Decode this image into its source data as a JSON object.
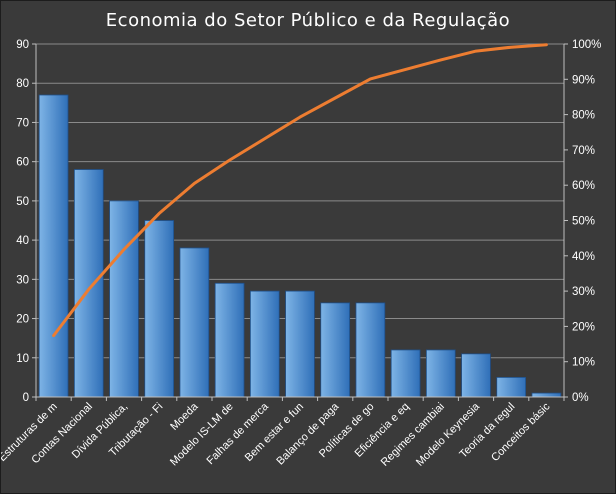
{
  "chart_data": {
    "type": "bar",
    "title": "Economia do Setor Público e da Regulação",
    "categories": [
      "Estruturas de m",
      "Contas Nacional",
      "Dívida Pública,",
      "Tributação - Fi",
      "Moeda",
      "Modelo IS-LM de",
      "Falhas de merca",
      "Bem estar e fun",
      "Balanço de paga",
      "Políticas de go",
      "Eficiência e eq",
      "Regimes cambiai",
      "Modelo Keynesia",
      "Teoria da regul",
      "Conceitos básic"
    ],
    "series": [
      {
        "type": "bar",
        "axis": "left",
        "values": [
          77,
          58,
          50,
          45,
          38,
          29,
          27,
          27,
          24,
          24,
          12,
          12,
          11,
          5,
          1
        ]
      },
      {
        "type": "line",
        "axis": "right",
        "values": [
          17.4,
          30.5,
          41.8,
          52.0,
          60.5,
          67.1,
          73.2,
          79.3,
          84.7,
          90.1,
          92.8,
          95.5,
          98.0,
          99.1,
          99.8
        ]
      }
    ],
    "y_left": {
      "min": 0,
      "max": 90,
      "step": 10,
      "ticks": [
        "0",
        "10",
        "20",
        "30",
        "40",
        "50",
        "60",
        "70",
        "80",
        "90"
      ]
    },
    "y_right": {
      "min": 0,
      "max": 100,
      "step": 10,
      "ticks": [
        "0%",
        "10%",
        "20%",
        "30%",
        "40%",
        "50%",
        "60%",
        "70%",
        "80%",
        "90%",
        "100%"
      ]
    },
    "grid": true,
    "legend": "none",
    "colors": {
      "background": "#3a3a3a",
      "grid": "#8a8a8a",
      "axis": "#bfbfbf",
      "bar_light": "#7eb4e6",
      "bar_dark": "#2f6fb8",
      "bar_edge": "#1f4e86",
      "line": "#ed7d31",
      "text": "#ffffff"
    }
  }
}
